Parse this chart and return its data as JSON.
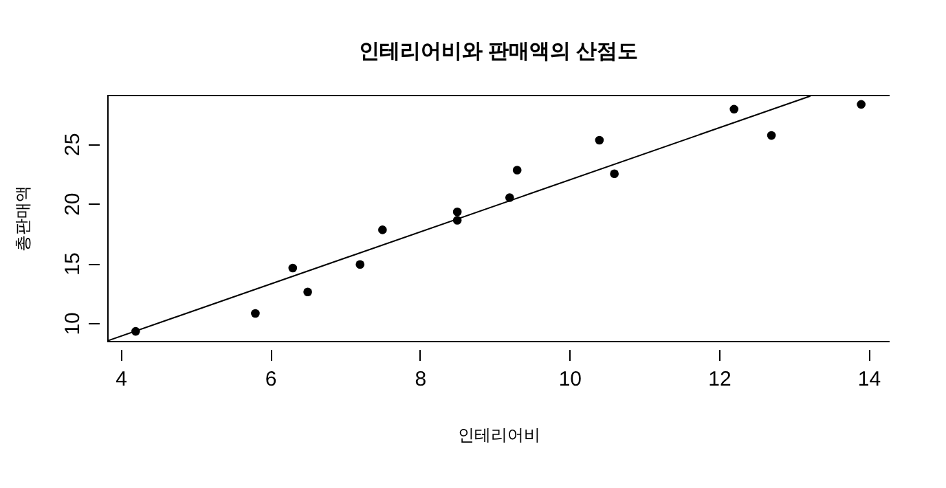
{
  "chart_data": {
    "type": "scatter",
    "title": "인테리어비와 판매액의 산점도",
    "xlabel": "인테리어비",
    "ylabel": "총판매액",
    "x": [
      4.2,
      5.8,
      6.3,
      6.5,
      7.2,
      7.5,
      8.5,
      8.5,
      9.2,
      9.3,
      10.4,
      10.6,
      12.2,
      12.7,
      13.9
    ],
    "series": [
      {
        "color": "#000000",
        "marker": "circle",
        "values": [
          9.3,
          10.8,
          14.6,
          12.6,
          14.9,
          17.8,
          19.3,
          18.6,
          20.5,
          22.8,
          25.3,
          22.5,
          27.9,
          25.7,
          28.3
        ]
      },
      {
        "type": "line",
        "color": "#000000",
        "marker": "none",
        "x": [
          3.82,
          13.22
        ],
        "values": [
          8.5,
          29.0
        ]
      }
    ],
    "xlim": [
      3.82,
      14.28
    ],
    "ylim": [
      8.5,
      29.1
    ],
    "xticks": [
      4,
      6,
      8,
      10,
      12,
      14
    ],
    "yticks": [
      10,
      15,
      20,
      25
    ],
    "grid": false,
    "line_style": "solid"
  }
}
